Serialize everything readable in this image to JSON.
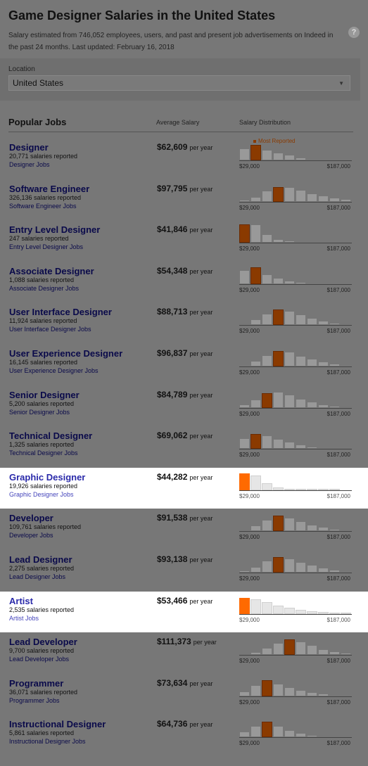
{
  "header": {
    "title": "Game Designer Salaries in the United States",
    "subtitle": "Salary estimated from 746,052 employees, users, and past and present job advertisements on Indeed in the past 24 months. Last updated: February 16, 2018",
    "help_icon": "question-circle-icon"
  },
  "location": {
    "label": "Location",
    "value": "United States"
  },
  "table": {
    "col_jobs": "Popular Jobs",
    "col_avg": "Average Salary",
    "col_dist": "Salary Distribution",
    "most_reported": "Most Reported",
    "tick_min": "$29,000",
    "tick_max": "$187,000",
    "per_year": "per year"
  },
  "colors": {
    "peak_dim": "#8a3a00",
    "peak_bright": "#ff6a00",
    "highlight_bg": "#ffffff",
    "link": "#0a0a4a"
  },
  "jobs": [
    {
      "title": "Designer",
      "count": "20,771 salaries reported",
      "link": "Designer Jobs",
      "salary": "$62,609",
      "bars": [
        0.62,
        0.78,
        0.55,
        0.4,
        0.28,
        0.14,
        0.08,
        0.05,
        0.03
      ],
      "peak": 1,
      "highlight": false,
      "most": true
    },
    {
      "title": "Software Engineer",
      "count": "326,136 salaries reported",
      "link": "Software Engineer Jobs",
      "salary": "$97,795",
      "bars": [
        0.08,
        0.25,
        0.55,
        0.75,
        0.72,
        0.58,
        0.42,
        0.3,
        0.2,
        0.12
      ],
      "peak": 3,
      "highlight": false
    },
    {
      "title": "Entry Level Designer",
      "count": "247 salaries reported",
      "link": "Entry Level Designer Jobs",
      "salary": "$41,846",
      "bars": [
        0.95,
        0.95,
        0.45,
        0.2,
        0.1,
        0.06,
        0.04,
        0.03
      ],
      "peak": 0,
      "highlight": false
    },
    {
      "title": "Associate Designer",
      "count": "1,088 salaries reported",
      "link": "Associate Designer Jobs",
      "salary": "$54,348",
      "bars": [
        0.7,
        0.85,
        0.5,
        0.3,
        0.18,
        0.1,
        0.06,
        0.04
      ],
      "peak": 1,
      "highlight": false
    },
    {
      "title": "User Interface Designer",
      "count": "11,924 salaries reported",
      "link": "User Interface Designer Jobs",
      "salary": "$88,713",
      "bars": [
        0.1,
        0.3,
        0.58,
        0.8,
        0.72,
        0.55,
        0.38,
        0.22,
        0.12,
        0.06
      ],
      "peak": 3,
      "highlight": false
    },
    {
      "title": "User Experience Designer",
      "count": "16,145 salaries reported",
      "link": "User Experience Designer Jobs",
      "salary": "$96,837",
      "bars": [
        0.08,
        0.28,
        0.58,
        0.8,
        0.75,
        0.55,
        0.4,
        0.25,
        0.14,
        0.08
      ],
      "peak": 3,
      "highlight": false
    },
    {
      "title": "Senior Designer",
      "count": "5,200 salaries reported",
      "link": "Senior Designer Jobs",
      "salary": "$84,789",
      "bars": [
        0.15,
        0.4,
        0.75,
        0.8,
        0.65,
        0.45,
        0.3,
        0.18,
        0.1,
        0.06
      ],
      "peak": 2,
      "highlight": false
    },
    {
      "title": "Technical Designer",
      "count": "1,325 salaries reported",
      "link": "Technical Designer Jobs",
      "salary": "$69,062",
      "bars": [
        0.55,
        0.75,
        0.7,
        0.5,
        0.35,
        0.22,
        0.12,
        0.07,
        0.04
      ],
      "peak": 1,
      "highlight": false
    },
    {
      "title": "Graphic Designer",
      "count": "19,926 salaries reported",
      "link": "Graphic Designer Jobs",
      "salary": "$44,282",
      "bars": [
        0.85,
        0.75,
        0.35,
        0.15,
        0.08,
        0.05,
        0.03,
        0.02,
        0.02
      ],
      "peak": 0,
      "highlight": true
    },
    {
      "title": "Developer",
      "count": "109,761 salaries reported",
      "link": "Developer Jobs",
      "salary": "$91,538",
      "bars": [
        0.1,
        0.3,
        0.6,
        0.8,
        0.7,
        0.5,
        0.35,
        0.22,
        0.12,
        0.06
      ],
      "peak": 3,
      "highlight": false
    },
    {
      "title": "Lead Designer",
      "count": "2,275 salaries reported",
      "link": "Lead Designer Jobs",
      "salary": "$93,138",
      "bars": [
        0.1,
        0.3,
        0.6,
        0.8,
        0.72,
        0.55,
        0.38,
        0.24,
        0.14,
        0.08
      ],
      "peak": 3,
      "highlight": false
    },
    {
      "title": "Artist",
      "count": "2,535 salaries reported",
      "link": "Artist Jobs",
      "salary": "$53,466",
      "bars": [
        0.8,
        0.75,
        0.6,
        0.42,
        0.3,
        0.2,
        0.12,
        0.08,
        0.05,
        0.03
      ],
      "peak": 0,
      "highlight": true
    },
    {
      "title": "Lead Developer",
      "count": "9,700 salaries reported",
      "link": "Lead Developer Jobs",
      "salary": "$111,373",
      "bars": [
        0.05,
        0.15,
        0.35,
        0.6,
        0.78,
        0.7,
        0.5,
        0.3,
        0.18,
        0.1
      ],
      "peak": 4,
      "highlight": false
    },
    {
      "title": "Programmer",
      "count": "36,071 salaries reported",
      "link": "Programmer Jobs",
      "salary": "$73,634",
      "bars": [
        0.25,
        0.55,
        0.8,
        0.65,
        0.45,
        0.3,
        0.2,
        0.12,
        0.07,
        0.04
      ],
      "peak": 2,
      "highlight": false
    },
    {
      "title": "Instructional Designer",
      "count": "5,861 salaries reported",
      "link": "Instructional Designer Jobs",
      "salary": "$64,736",
      "bars": [
        0.3,
        0.6,
        0.8,
        0.6,
        0.38,
        0.22,
        0.12,
        0.07,
        0.04,
        0.02
      ],
      "peak": 2,
      "highlight": false
    }
  ]
}
